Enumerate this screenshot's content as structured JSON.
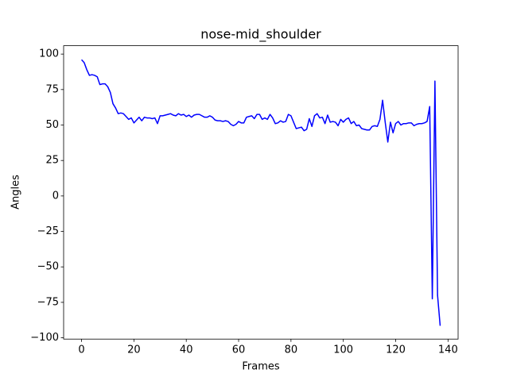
{
  "chart_data": {
    "type": "line",
    "title": "nose-mid_shoulder",
    "xlabel": "Frames",
    "ylabel": "Angles",
    "x": [
      0,
      1,
      2,
      3,
      4,
      5,
      6,
      7,
      8,
      9,
      10,
      11,
      12,
      13,
      14,
      15,
      16,
      17,
      18,
      19,
      20,
      21,
      22,
      23,
      24,
      25,
      26,
      27,
      28,
      29,
      30,
      31,
      32,
      33,
      34,
      35,
      36,
      37,
      38,
      39,
      40,
      41,
      42,
      43,
      44,
      45,
      46,
      47,
      48,
      49,
      50,
      51,
      52,
      53,
      54,
      55,
      56,
      57,
      58,
      59,
      60,
      61,
      62,
      63,
      64,
      65,
      66,
      67,
      68,
      69,
      70,
      71,
      72,
      73,
      74,
      75,
      76,
      77,
      78,
      79,
      80,
      81,
      82,
      83,
      84,
      85,
      86,
      87,
      88,
      89,
      90,
      91,
      92,
      93,
      94,
      95,
      96,
      97,
      98,
      99,
      100,
      101,
      102,
      103,
      104,
      105,
      106,
      107,
      108,
      109,
      110,
      111,
      112,
      113,
      114,
      115,
      116,
      117,
      118,
      119,
      120,
      121,
      122,
      123,
      124,
      125,
      126,
      127,
      128,
      129,
      130,
      131,
      132,
      133,
      134,
      135,
      136,
      137
    ],
    "series": [
      {
        "name": "nose-mid_shoulder",
        "color": "#0000ff",
        "values": [
          96,
          94,
          89,
          85,
          85.5,
          85,
          84,
          78.5,
          79,
          79,
          77,
          73,
          65,
          62,
          58,
          58.5,
          58,
          56,
          54,
          55,
          51.5,
          53.5,
          55.5,
          53,
          55.5,
          55,
          55,
          54.5,
          55,
          51,
          56.5,
          56.5,
          57,
          57.5,
          58,
          57,
          56.5,
          58,
          57,
          57.5,
          56,
          57,
          55.5,
          57,
          57.5,
          57.5,
          56.5,
          55.5,
          55.5,
          56.5,
          55.5,
          53.5,
          53,
          53,
          52.5,
          53,
          52.5,
          50.5,
          49.5,
          50.5,
          52.5,
          51.5,
          51.5,
          55.5,
          56,
          56.5,
          54.5,
          57.5,
          57.5,
          54,
          55,
          54,
          57.5,
          55,
          51,
          51.5,
          53,
          52,
          52.5,
          57.5,
          56.5,
          52,
          47.5,
          48,
          48.5,
          46,
          47,
          54.5,
          49,
          56.5,
          58,
          55,
          55.5,
          51,
          57,
          52,
          52.5,
          52,
          49.5,
          54,
          52,
          54,
          55,
          51,
          52.5,
          49.5,
          50,
          47.5,
          47,
          46.5,
          46.5,
          49,
          49.5,
          49,
          54,
          67.5,
          52,
          38,
          52,
          44.5,
          51,
          52.5,
          50,
          51,
          51,
          51.5,
          51.5,
          49.5,
          50.5,
          51,
          51,
          51.5,
          52.5,
          63,
          -72.5,
          81,
          -70,
          -91.5
        ]
      }
    ],
    "xlim": [
      -6.85,
      143.85
    ],
    "ylim": [
      -100.9,
      105.9
    ],
    "xticks": [
      0,
      20,
      40,
      60,
      80,
      100,
      120,
      140
    ],
    "yticks": [
      {
        "value": -100,
        "label": "−100"
      },
      {
        "value": -75,
        "label": "−75"
      },
      {
        "value": -50,
        "label": "−50"
      },
      {
        "value": -25,
        "label": "−25"
      },
      0,
      25,
      50,
      75,
      100
    ]
  }
}
